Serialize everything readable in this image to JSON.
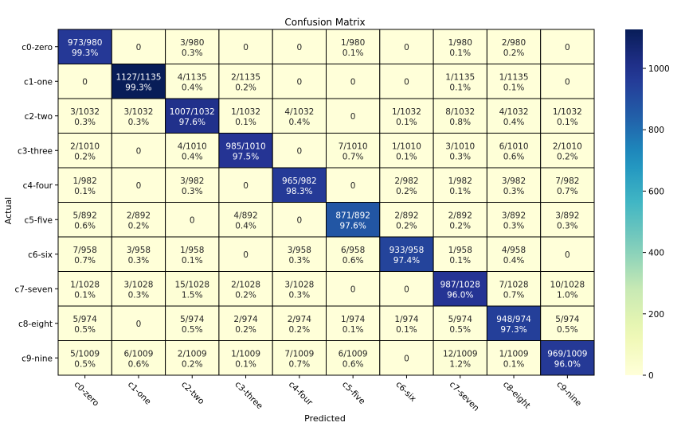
{
  "chart_data": {
    "type": "heatmap",
    "title": "Confusion Matrix",
    "xlabel": "Predicted",
    "ylabel": "Actual",
    "labels": [
      "c0-zero",
      "c1-one",
      "c2-two",
      "c3-three",
      "c4-four",
      "c5-five",
      "c6-six",
      "c7-seven",
      "c8-eight",
      "c9-nine"
    ],
    "row_totals": [
      980,
      1135,
      1032,
      1010,
      982,
      892,
      958,
      1028,
      974,
      1009
    ],
    "matrix": [
      [
        973,
        0,
        3,
        0,
        0,
        1,
        0,
        1,
        2,
        0
      ],
      [
        0,
        1127,
        4,
        2,
        0,
        0,
        0,
        1,
        1,
        0
      ],
      [
        3,
        3,
        1007,
        1,
        4,
        0,
        1,
        8,
        4,
        1
      ],
      [
        2,
        0,
        4,
        985,
        0,
        7,
        1,
        3,
        6,
        2
      ],
      [
        1,
        0,
        3,
        0,
        965,
        0,
        2,
        1,
        3,
        7
      ],
      [
        5,
        2,
        0,
        4,
        0,
        871,
        2,
        2,
        3,
        3
      ],
      [
        7,
        3,
        1,
        0,
        3,
        6,
        933,
        1,
        4,
        0
      ],
      [
        1,
        3,
        15,
        2,
        3,
        0,
        0,
        987,
        7,
        10
      ],
      [
        5,
        0,
        5,
        2,
        2,
        1,
        1,
        5,
        948,
        5
      ],
      [
        5,
        6,
        2,
        1,
        7,
        6,
        0,
        12,
        1,
        969
      ]
    ],
    "colorbar": {
      "colormap": "YlGnBu",
      "range": [
        0,
        1127
      ],
      "ticks": [
        0,
        200,
        400,
        600,
        800,
        1000
      ]
    },
    "grid": true
  }
}
